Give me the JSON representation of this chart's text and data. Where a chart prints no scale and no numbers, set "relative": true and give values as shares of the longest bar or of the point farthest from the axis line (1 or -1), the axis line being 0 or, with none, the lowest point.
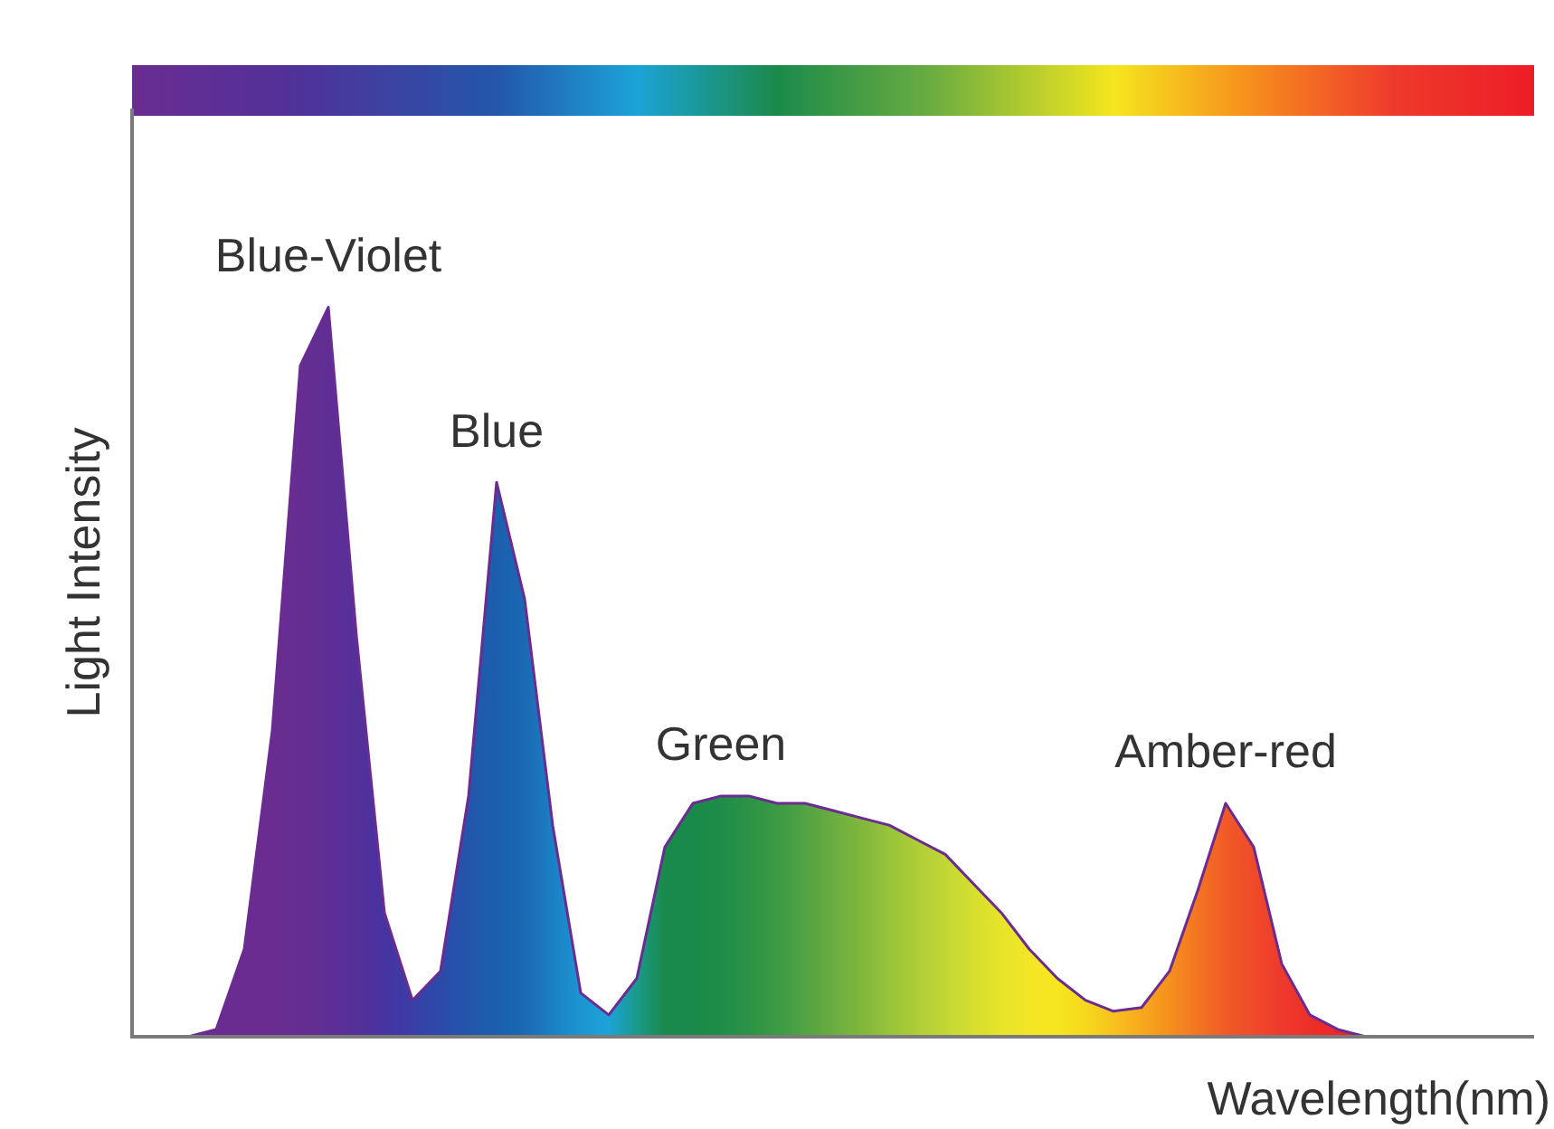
{
  "chart_data": {
    "type": "area",
    "relative": true,
    "xlabel": "Wavelength(nm)",
    "ylabel": "Light Intensity",
    "legend": false,
    "annotations": [
      "Blue-Violet",
      "Blue",
      "Green",
      "Amber-red"
    ],
    "categories": [
      null,
      null,
      null,
      null,
      null,
      null,
      null,
      null,
      null,
      null,
      null,
      null,
      null,
      null,
      null,
      null,
      null,
      null,
      null,
      null,
      null,
      null,
      null,
      null,
      null,
      null,
      null,
      null,
      null,
      null,
      null,
      null,
      null,
      null,
      null,
      null,
      null,
      null,
      null,
      null,
      null,
      null,
      null,
      null,
      null,
      null,
      null,
      null,
      null,
      null,
      null
    ],
    "series": [
      {
        "color": "#6a2c91",
        "colors": [
          "#6a2c91",
          "#6a2c91",
          "#6a2c91",
          "#6a2c91",
          "#6a2c91",
          "#6a2c91",
          "#652d92",
          "#5f2e94",
          "#55309a",
          "#4533a0",
          "#3a3ea6",
          "#2c4aa8",
          "#2356ab",
          "#1b5fad",
          "#1b68b3",
          "#1b7fc4",
          "#1c95d2",
          "#1ca3d8",
          "#1a9a8a",
          "#1a8a4a",
          "#1a8a4a",
          "#1f8d48",
          "#2b9346",
          "#3c9a44",
          "#52a342",
          "#6aad40",
          "#80b73d",
          "#98c33a",
          "#aecd37",
          "#c2d734",
          "#d5df2f",
          "#e6e42a",
          "#f2e626",
          "#f5e61e",
          "#f7d81e",
          "#f7c21e",
          "#f7a81d",
          "#f6901e",
          "#f47422",
          "#f15a27",
          "#ef4a2a",
          "#ee3a2c",
          "#ed2f2a",
          "#ed2628",
          "#ed1c24",
          "#ed1c24",
          "#ed1c24",
          "#ed1c24",
          "#ed1c24",
          "#ed1c24",
          "#ed1c24"
        ],
        "values": [
          0,
          0,
          0,
          0.01,
          0.12,
          0.42,
          0.92,
          1,
          0.55,
          0.17,
          0.05,
          0.09,
          0.33,
          0.76,
          0.6,
          0.29,
          0.06,
          0.03,
          0.08,
          0.26,
          0.32,
          0.33,
          0.33,
          0.32,
          0.32,
          0.31,
          0.3,
          0.29,
          0.27,
          0.25,
          0.21,
          0.17,
          0.12,
          0.08,
          0.05,
          0.035,
          0.04,
          0.09,
          0.2,
          0.32,
          0.26,
          0.1,
          0.03,
          0.01,
          0,
          0,
          0,
          0,
          0,
          0,
          0
        ]
      }
    ]
  }
}
